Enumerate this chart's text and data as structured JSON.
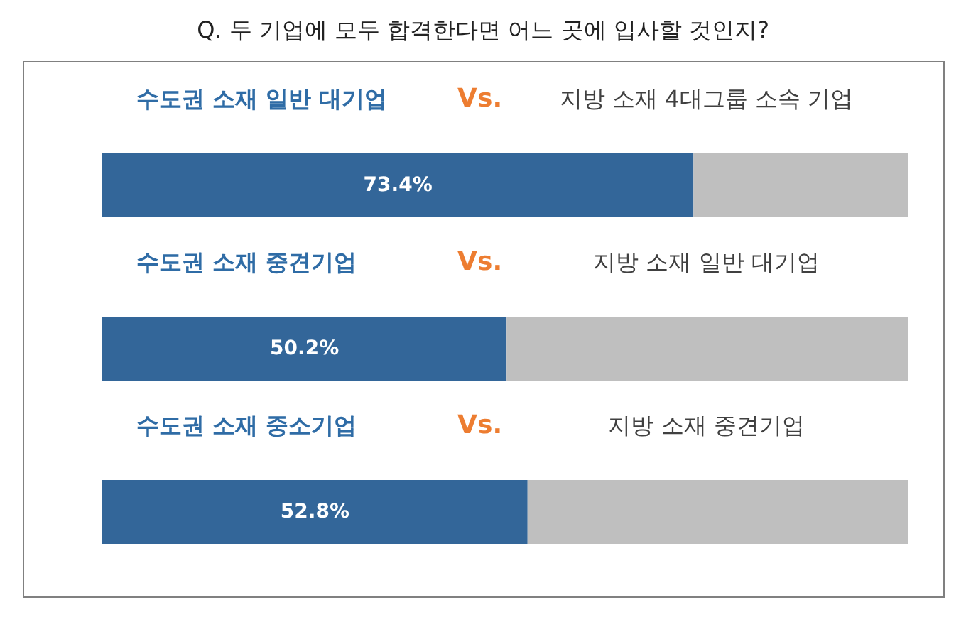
{
  "chart_data": {
    "type": "bar",
    "orientation": "horizontal",
    "stacked": true,
    "title": "Q. 두 기업에 모두 합격한다면 어느 곳에 입사할 것인지?",
    "categories": [
      "수도권 소재 일반 대기업",
      "수도권 소재 중견기업",
      "수도권 소재 중소기업"
    ],
    "xlim": [
      0,
      100
    ],
    "tick_labels": "y",
    "series": [
      {
        "color": "#336699",
        "values": [
          73.4,
          50.2,
          52.8
        ],
        "value_labels": [
          "73.4%",
          "50.2%",
          "52.8%"
        ]
      },
      {
        "color": "#bfbfbf",
        "values": [
          26.6,
          49.8,
          47.2
        ]
      }
    ],
    "annotations": [
      "Vs.",
      "지방 소재 4대그룹 소속 기업",
      "Vs.",
      "지방 소재 일반 대기업",
      "Vs.",
      "지방 소재 중견기업"
    ]
  }
}
